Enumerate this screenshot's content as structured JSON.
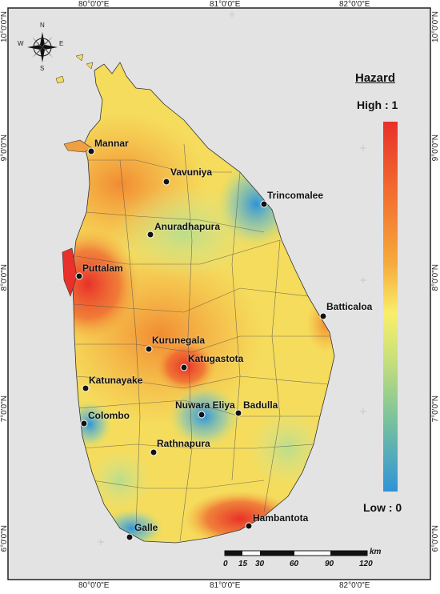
{
  "legend": {
    "title": "Hazard",
    "high_label": "High : 1",
    "low_label": "Low : 0",
    "colors": [
      "#e8312a",
      "#f6a93b",
      "#f9ef6a",
      "#7cc49a",
      "#2f94d8"
    ]
  },
  "axes": {
    "top": [
      "80°0'0\"E",
      "81°0'0\"E",
      "82°0'0\"E"
    ],
    "bottom": [
      "80°0'0\"E",
      "81°0'0\"E",
      "82°0'0\"E"
    ],
    "left": [
      "10°0'0\"N",
      "9°0'0\"N",
      "8°0'0\"N",
      "7°0'0\"N",
      "6°0'0\"N"
    ],
    "right": [
      "10°0'0\"N",
      "9°0'0\"N",
      "8°0'0\"N",
      "7°0'0\"N",
      "6°0'0\"N"
    ]
  },
  "compass": {
    "n": "N",
    "s": "S",
    "e": "E",
    "w": "W",
    "icon": "compass-rose-icon"
  },
  "scale": {
    "unit": "km",
    "ticks": [
      "0",
      "15",
      "30",
      "60",
      "90",
      "120"
    ]
  },
  "cities": [
    {
      "name": "Mannar"
    },
    {
      "name": "Vavuniya"
    },
    {
      "name": "Trincomalee"
    },
    {
      "name": "Anuradhapura"
    },
    {
      "name": "Puttalam"
    },
    {
      "name": "Batticaloa"
    },
    {
      "name": "Kurunegala"
    },
    {
      "name": "Katugastota"
    },
    {
      "name": "Katunayake"
    },
    {
      "name": "Colombo"
    },
    {
      "name": "Nuwara Eliya"
    },
    {
      "name": "Badulla"
    },
    {
      "name": "Rathnapura"
    },
    {
      "name": "Hambantota"
    },
    {
      "name": "Galle"
    }
  ]
}
